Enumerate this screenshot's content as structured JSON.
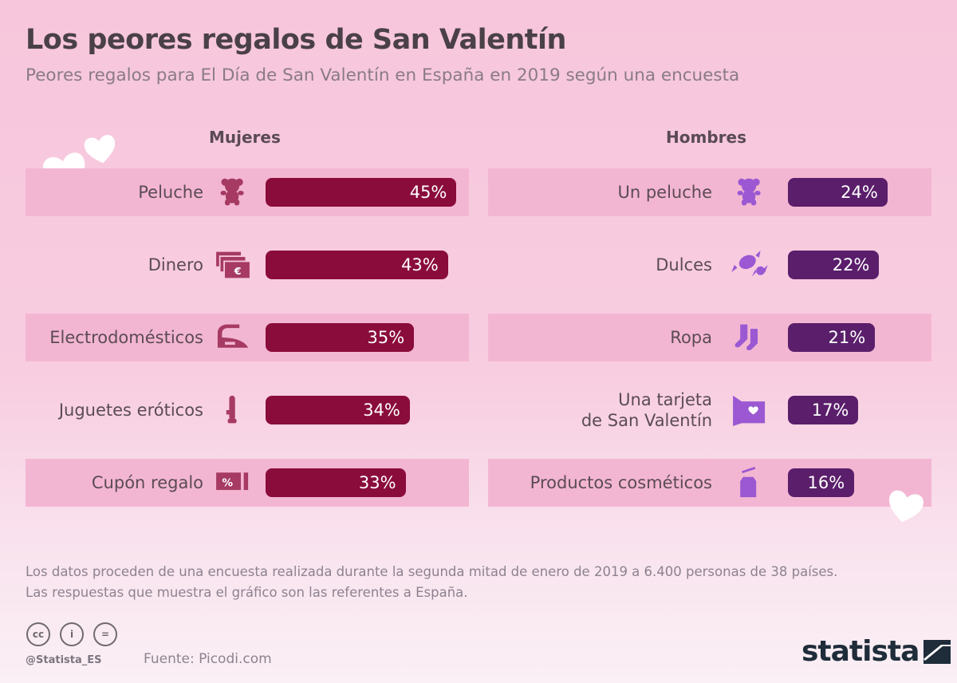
{
  "title": "Los peores regalos de San Valentín",
  "subtitle": "Peores regalos para El Día de San Valentín en España en 2019 según una encuesta",
  "chart_data": [
    {
      "type": "bar",
      "title": "Mujeres",
      "orientation": "horizontal",
      "unit": "%",
      "categories": [
        "Peluche",
        "Dinero",
        "Electrodomésticos",
        "Juguetes eróticos",
        "Cupón regalo"
      ],
      "icons": [
        "teddy-bear-icon",
        "money-icon",
        "iron-icon",
        "toy-icon",
        "coupon-icon"
      ],
      "values": [
        45,
        43,
        35,
        34,
        33
      ],
      "labels": [
        "45%",
        "43%",
        "35%",
        "34%",
        "33%"
      ],
      "color": "#8a0c3b",
      "icon_color": "#a63a63"
    },
    {
      "type": "bar",
      "title": "Hombres",
      "orientation": "horizontal",
      "unit": "%",
      "categories": [
        "Un peluche",
        "Dulces",
        "Ropa",
        "Una tarjeta\nde San Valentín",
        "Productos cosméticos"
      ],
      "icons": [
        "teddy-bear-icon",
        "candy-icon",
        "socks-icon",
        "card-icon",
        "cosmetics-icon"
      ],
      "values": [
        24,
        22,
        21,
        17,
        16
      ],
      "labels": [
        "24%",
        "22%",
        "21%",
        "17%",
        "16%"
      ],
      "color": "#5a1e6b",
      "icon_color": "#9b58d2"
    }
  ],
  "note": [
    "Los datos proceden de una encuesta realizada durante la segunda mitad de enero de 2019 a 6.400 personas de 38 países.",
    "Las respuestas que muestra el gráfico son las referentes a España."
  ],
  "footer": {
    "license": [
      "cc",
      "i",
      "="
    ],
    "handle": "@Statista_ES",
    "source": "Fuente: Picodi.com",
    "brand": "statista"
  }
}
